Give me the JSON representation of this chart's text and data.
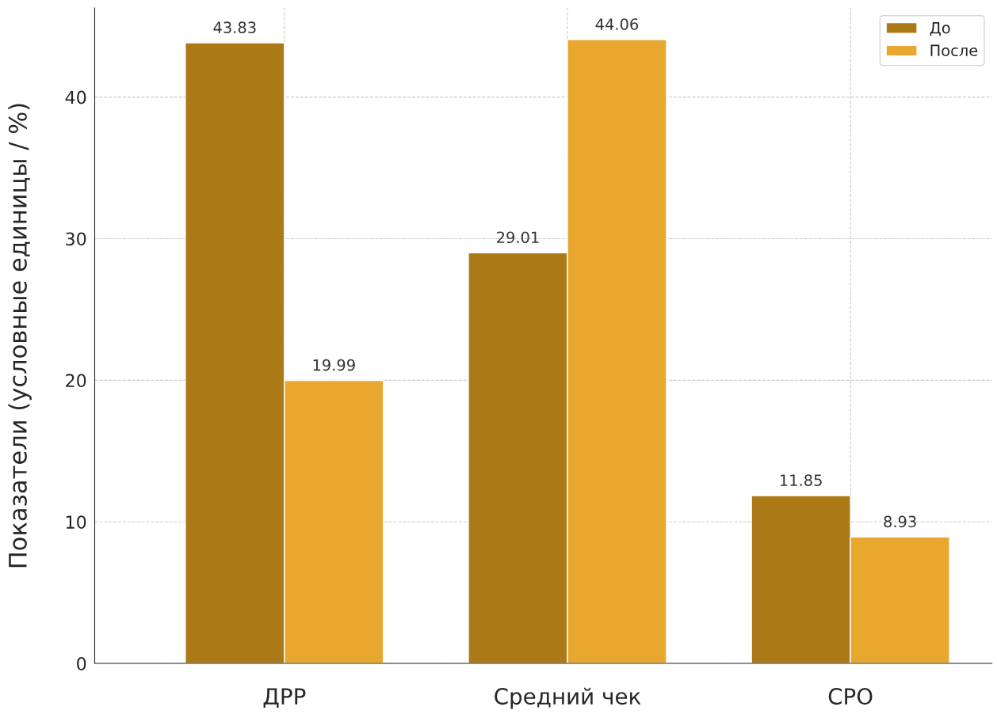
{
  "chart_data": {
    "type": "bar",
    "ylabel": "Показатели (условные единицы / %)",
    "categories": [
      "ДРР",
      "Средний чек",
      "CPO"
    ],
    "series": [
      {
        "name": "До",
        "color": "#ab7a17",
        "values": [
          43.83,
          29.01,
          11.85
        ]
      },
      {
        "name": "После",
        "color": "#e8a830",
        "values": [
          19.99,
          44.06,
          8.93
        ]
      }
    ],
    "ylim": [
      0,
      46.3
    ],
    "yticks": [
      0,
      10,
      20,
      30,
      40
    ],
    "grid": true,
    "legend": "top right",
    "data_labels": true
  }
}
